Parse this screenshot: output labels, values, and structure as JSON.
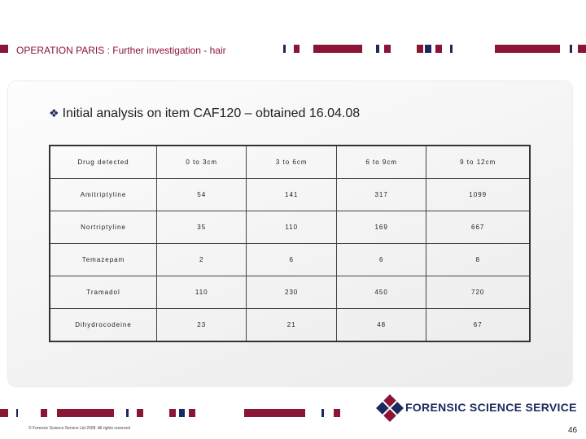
{
  "header": {
    "title": "OPERATION PARIS : Further investigation - hair"
  },
  "heading": "Initial analysis on item CAF120 – obtained 16.04.08",
  "table": {
    "columns": [
      "Drug detected",
      "0 to 3cm",
      "3 to 6cm",
      "6 to 9cm",
      "9 to 12cm"
    ],
    "rows": [
      [
        "Amitriptyline",
        54,
        141,
        317,
        1099
      ],
      [
        "Nortriptyline",
        35,
        110,
        169,
        667
      ],
      [
        "Temazepam",
        2,
        6,
        6,
        8
      ],
      [
        "Tramadol",
        110,
        230,
        450,
        720
      ],
      [
        "Dihydrocodeine",
        23,
        21,
        48,
        67
      ]
    ]
  },
  "footer": {
    "copyright": "© Forensic Science Service Ltd 2008. All rights reserved",
    "logo": "FORENSIC SCIENCE SERVICE",
    "page": 46
  }
}
